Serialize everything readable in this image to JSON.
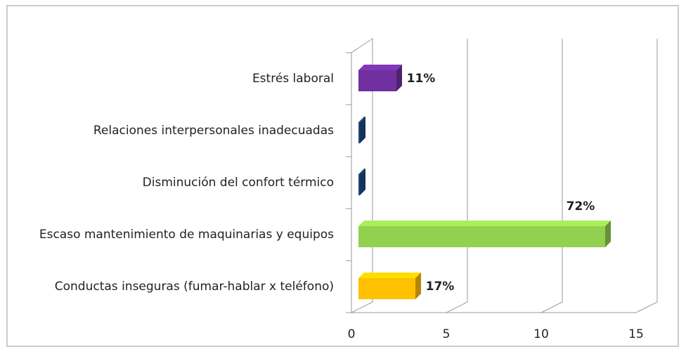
{
  "chart_data": {
    "type": "bar3d",
    "orientation": "horizontal",
    "categories": [
      "Estrés laboral",
      "Relaciones interpersonales inadecuadas",
      "Disminución del confort térmico",
      "Escaso mantenimiento de maquinarias y equipos",
      "Conductas inseguras (fumar-hablar x teléfono)"
    ],
    "values": [
      2,
      0,
      0,
      13,
      3
    ],
    "value_labels": [
      "11%",
      null,
      null,
      "72%",
      "17%"
    ],
    "colors": [
      "#7030a0",
      "#1f497d",
      "#1f497d",
      "#92d050",
      "#ffc000"
    ],
    "xlim": [
      0,
      15
    ],
    "xticks": [
      0,
      5,
      10,
      15
    ],
    "grid": true
  }
}
